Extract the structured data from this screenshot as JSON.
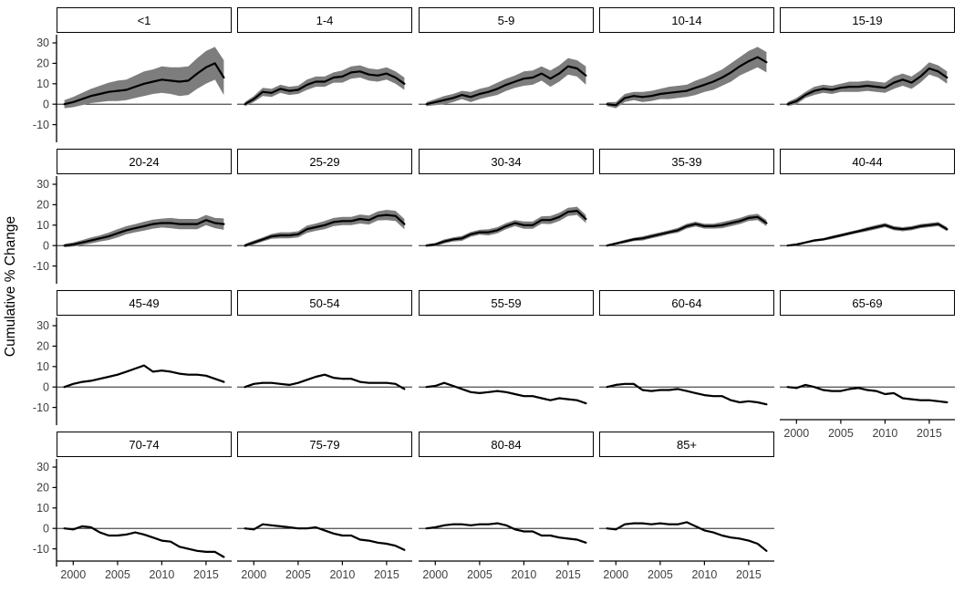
{
  "chart_data": {
    "type": "line",
    "title": "",
    "xlabel": "",
    "ylabel": "Cumulative % Change",
    "x": [
      1999,
      2000,
      2001,
      2002,
      2003,
      2004,
      2005,
      2006,
      2007,
      2008,
      2009,
      2010,
      2011,
      2012,
      2013,
      2014,
      2015,
      2016,
      2017
    ],
    "x_ticks": [
      2000,
      2005,
      2010,
      2015
    ],
    "y_ticks": [
      30,
      20,
      10,
      0,
      -10
    ],
    "ylim": [
      -16,
      34
    ],
    "grid": false,
    "legend_position": "none",
    "zero_line": 0,
    "line_color": "#000000",
    "ribbon_color": "#7d7d7d",
    "tick_label_color": "#404040",
    "facet_layout": {
      "columns": 5,
      "rows": 4
    },
    "panels": [
      {
        "label": "<1",
        "values": [
          0,
          1,
          2.5,
          4,
          5,
          6,
          6.5,
          7,
          8.5,
          10,
          11,
          12,
          11.5,
          11,
          11.5,
          15,
          18,
          20,
          13
        ],
        "ci": [
          2,
          2.5,
          3,
          3.5,
          4,
          4.5,
          5,
          5,
          5.5,
          6,
          6,
          6.5,
          6.5,
          7,
          7,
          7.5,
          8,
          8,
          8.5
        ]
      },
      {
        "label": "1-4",
        "values": [
          0,
          2.5,
          6,
          5.5,
          7.5,
          6.5,
          7,
          9.5,
          11,
          11,
          13,
          13.5,
          15.5,
          16,
          14.5,
          14,
          15,
          13,
          10
        ],
        "ci": [
          1,
          1.5,
          2,
          2,
          2,
          2,
          2,
          2.5,
          2.5,
          2.5,
          2.5,
          3,
          3,
          3,
          3,
          3,
          3,
          3,
          3
        ]
      },
      {
        "label": "5-9",
        "values": [
          0,
          1,
          2,
          3,
          4.5,
          3.5,
          5,
          6,
          7.5,
          9.5,
          11,
          12.5,
          13,
          15,
          12.5,
          15,
          18.5,
          17.5,
          14
        ],
        "ci": [
          1,
          1.5,
          2,
          2,
          2,
          2.5,
          2.5,
          2.5,
          3,
          3,
          3,
          3.5,
          3.5,
          3.5,
          4,
          4,
          4,
          4,
          4.5
        ]
      },
      {
        "label": "10-14",
        "values": [
          0,
          -0.5,
          3,
          4,
          3.5,
          4,
          5,
          5.5,
          6,
          6.5,
          8,
          9.5,
          11,
          13,
          15.5,
          18.5,
          21,
          23,
          20.5
        ],
        "ci": [
          1,
          1.5,
          2,
          2,
          2.5,
          2.5,
          2.5,
          3,
          3,
          3,
          3.5,
          3.5,
          4,
          4,
          4.5,
          4.5,
          5,
          5,
          5
        ]
      },
      {
        "label": "15-19",
        "values": [
          0,
          1.5,
          4.5,
          6.5,
          7.5,
          7,
          8,
          8.5,
          8.5,
          9,
          8.5,
          8,
          10.5,
          12,
          10.5,
          13.5,
          17.5,
          16,
          13
        ],
        "ci": [
          1,
          1.5,
          1.5,
          2,
          2,
          2,
          2,
          2.5,
          2.5,
          2.5,
          2.5,
          2.5,
          3,
          3,
          3,
          3,
          3,
          3,
          3
        ]
      },
      {
        "label": "20-24",
        "values": [
          0,
          0.5,
          1.5,
          2.5,
          3.5,
          4.5,
          6,
          7.5,
          8.5,
          9.5,
          10.5,
          11,
          11,
          10.5,
          10.5,
          10.5,
          12.5,
          11,
          10.5
        ],
        "ci": [
          0.8,
          1,
          1.2,
          1.5,
          1.5,
          1.8,
          2,
          2,
          2,
          2.2,
          2.2,
          2.2,
          2.5,
          2.5,
          2.5,
          2.5,
          2.5,
          2.5,
          2.8
        ]
      },
      {
        "label": "25-29",
        "values": [
          0,
          1.5,
          3,
          4.5,
          5,
          5,
          5.5,
          8,
          9,
          10,
          11.5,
          12,
          12,
          13,
          12.5,
          14.5,
          15,
          14.5,
          10.5
        ],
        "ci": [
          0.8,
          1,
          1,
          1.2,
          1.5,
          1.5,
          1.5,
          1.8,
          1.8,
          2,
          2,
          2,
          2,
          2.2,
          2.2,
          2.2,
          2.5,
          2.5,
          2.5
        ]
      },
      {
        "label": "30-34",
        "values": [
          0,
          0.5,
          2,
          3,
          3.5,
          5.5,
          6.5,
          6.5,
          7.5,
          9.5,
          11,
          10,
          10,
          12.5,
          12.5,
          14,
          16.5,
          17,
          13
        ],
        "ci": [
          0.6,
          0.8,
          1,
          1,
          1.2,
          1.2,
          1.2,
          1.5,
          1.5,
          1.5,
          1.5,
          1.8,
          1.8,
          1.8,
          2,
          2,
          2,
          2,
          2
        ]
      },
      {
        "label": "35-39",
        "values": [
          0,
          1,
          2,
          3,
          3.5,
          4.5,
          5.5,
          6.5,
          7.5,
          9.5,
          10.5,
          9.5,
          9.5,
          10,
          11,
          12,
          13.5,
          14,
          11
        ],
        "ci": [
          0.5,
          0.6,
          0.8,
          0.8,
          1,
          1,
          1,
          1,
          1.2,
          1.2,
          1.2,
          1.2,
          1.2,
          1.5,
          1.5,
          1.5,
          1.5,
          1.5,
          1.5
        ]
      },
      {
        "label": "40-44",
        "values": [
          0,
          0.5,
          1.5,
          2.5,
          3,
          4,
          5,
          6,
          7,
          8,
          9,
          10,
          8.5,
          8,
          8.5,
          9.5,
          10,
          10.5,
          8
        ],
        "ci": [
          0.4,
          0.5,
          0.5,
          0.6,
          0.6,
          0.8,
          0.8,
          0.8,
          0.8,
          1,
          1,
          1,
          1,
          1,
          1,
          1,
          1,
          1,
          1
        ]
      },
      {
        "label": "45-49",
        "values": [
          0,
          1.5,
          2.5,
          3,
          4,
          5,
          6,
          7.5,
          9,
          10.5,
          7.5,
          8,
          7.5,
          6.5,
          6,
          6,
          5.5,
          4,
          2.5
        ],
        "ci": 0.4
      },
      {
        "label": "50-54",
        "values": [
          0,
          1.5,
          2,
          2,
          1.5,
          1,
          2,
          3.5,
          5,
          6,
          4.5,
          4,
          4,
          2.5,
          2,
          2,
          2,
          1.5,
          -1
        ],
        "ci": 0.4
      },
      {
        "label": "55-59",
        "values": [
          0,
          0.5,
          2,
          0.5,
          -1,
          -2.5,
          -3,
          -2.5,
          -2,
          -2.5,
          -3.5,
          -4.5,
          -4.5,
          -5.5,
          -6.5,
          -5.5,
          -6,
          -6.5,
          -8
        ],
        "ci": 0.4
      },
      {
        "label": "60-64",
        "values": [
          0,
          1,
          1.5,
          1.5,
          -1.5,
          -2,
          -1.5,
          -1.5,
          -1,
          -2,
          -3,
          -4,
          -4.5,
          -4.5,
          -6.5,
          -7.5,
          -7,
          -7.5,
          -8.5
        ],
        "ci": 0.4
      },
      {
        "label": "65-69",
        "values": [
          0,
          -0.5,
          1,
          0,
          -1.5,
          -2,
          -2,
          -1,
          -0.5,
          -1.5,
          -2,
          -3.5,
          -3,
          -5.5,
          -6,
          -6.5,
          -6.5,
          -7,
          -7.5
        ],
        "ci": 0.4
      },
      {
        "label": "70-74",
        "values": [
          0,
          -0.5,
          1,
          0.5,
          -2,
          -3.5,
          -3.5,
          -3,
          -2,
          -3,
          -4.5,
          -6,
          -6.5,
          -9,
          -10,
          -11,
          -11.5,
          -11.5,
          -14
        ],
        "ci": 0.4
      },
      {
        "label": "75-79",
        "values": [
          0,
          -0.5,
          2,
          1.5,
          1,
          0.5,
          0,
          0,
          0.5,
          -1,
          -2.5,
          -3.5,
          -3.5,
          -5.5,
          -6,
          -7,
          -7.5,
          -8.5,
          -10.5
        ],
        "ci": 0.4
      },
      {
        "label": "80-84",
        "values": [
          0,
          0.5,
          1.5,
          2,
          2,
          1.5,
          2,
          2,
          2.5,
          1.5,
          -0.5,
          -1.5,
          -1.5,
          -3.5,
          -3.5,
          -4.5,
          -5,
          -5.5,
          -7
        ],
        "ci": 0.4
      },
      {
        "label": "85+",
        "values": [
          0,
          -0.5,
          2,
          2.5,
          2.5,
          2,
          2.5,
          2,
          2,
          3,
          1,
          -1,
          -2,
          -3.5,
          -4.5,
          -5,
          -6,
          -7.5,
          -11
        ],
        "ci": 0.4
      }
    ]
  }
}
